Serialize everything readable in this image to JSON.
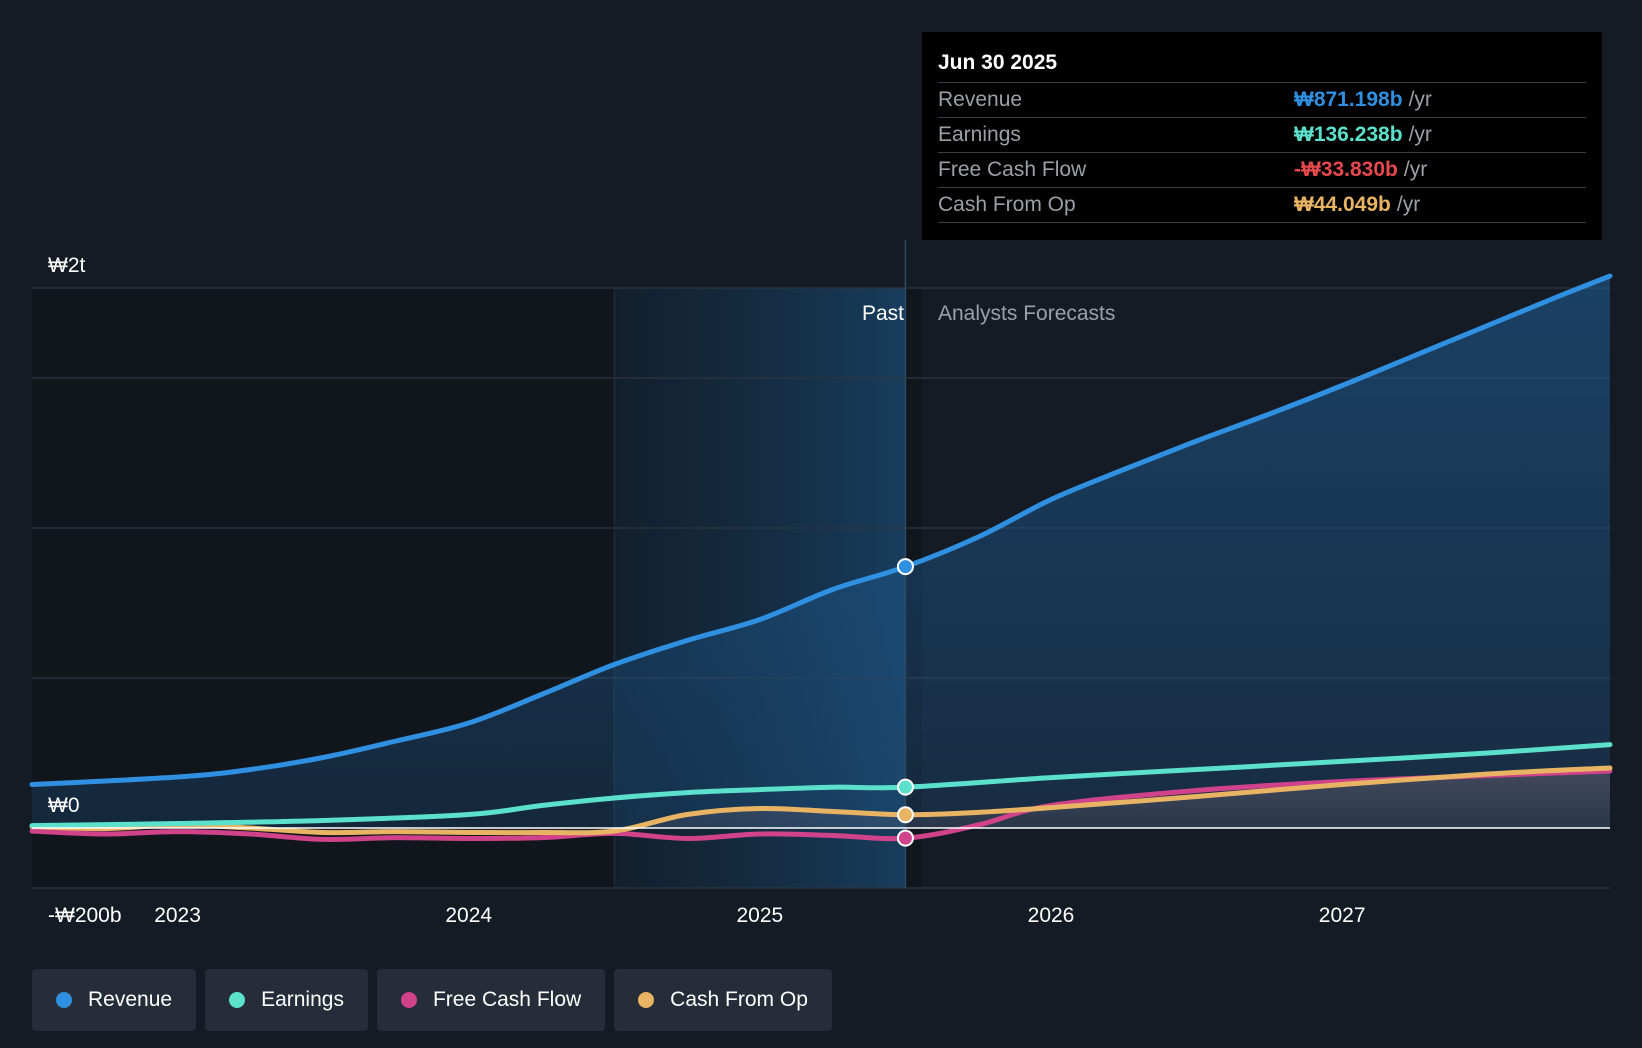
{
  "colors": {
    "revenue": "#2f8fe0",
    "earnings": "#5be0cb",
    "fcf": "#d0428a",
    "cfo": "#e8b463",
    "negative": "#e5484d"
  },
  "tooltip": {
    "date": "Jun 30 2025",
    "rows": [
      {
        "label": "Revenue",
        "value": "₩871.198b",
        "unit": "/yr"
      },
      {
        "label": "Earnings",
        "value": "₩136.238b",
        "unit": "/yr"
      },
      {
        "label": "Free Cash Flow",
        "value": "-₩33.830b",
        "unit": "/yr"
      },
      {
        "label": "Cash From Op",
        "value": "₩44.049b",
        "unit": "/yr"
      }
    ]
  },
  "legend": [
    {
      "label": "Revenue",
      "color": "#2f8fe0"
    },
    {
      "label": "Earnings",
      "color": "#5be0cb"
    },
    {
      "label": "Free Cash Flow",
      "color": "#d0428a"
    },
    {
      "label": "Cash From Op",
      "color": "#e8b463"
    }
  ],
  "chart_data": {
    "type": "line",
    "title": "",
    "xlabel": "",
    "ylabel": "",
    "y_unit": "KRW billions",
    "xlim": [
      2022.5,
      2027.92
    ],
    "ylim": [
      -200,
      1800
    ],
    "y_tick_labels": [
      {
        "value": 1800,
        "label": "₩2t"
      },
      {
        "value": 0,
        "label": "₩0"
      },
      {
        "value": -200,
        "label": "-₩200b"
      }
    ],
    "y_gridlines": [
      1800,
      1500,
      1000,
      500,
      0,
      -200
    ],
    "x_ticks": [
      2023,
      2024,
      2025,
      2026,
      2027
    ],
    "x_tick_labels": [
      "2023",
      "2024",
      "2025",
      "2026",
      "2027"
    ],
    "past_label": "Past",
    "forecast_label": "Analysts Forecasts",
    "past_shade_start": 2024.5,
    "divider_x": 2025.5,
    "series": [
      {
        "name": "Revenue",
        "key": "revenue",
        "x": [
          2022.5,
          2023.0,
          2023.25,
          2023.5,
          2023.75,
          2024.0,
          2024.25,
          2024.5,
          2024.75,
          2025.0,
          2025.25,
          2025.5,
          2025.75,
          2026.0,
          2026.25,
          2026.5,
          2026.75,
          2027.0,
          2027.25,
          2027.5,
          2027.75,
          2027.92
        ],
        "values": [
          145,
          170,
          195,
          235,
          290,
          350,
          445,
          545,
          625,
          695,
          795,
          871,
          970,
          1095,
          1195,
          1290,
          1380,
          1475,
          1575,
          1675,
          1775,
          1840
        ]
      },
      {
        "name": "Earnings",
        "key": "earnings",
        "x": [
          2022.5,
          2023.0,
          2023.5,
          2024.0,
          2024.25,
          2024.5,
          2024.75,
          2025.0,
          2025.25,
          2025.5,
          2026.0,
          2026.5,
          2027.0,
          2027.5,
          2027.92
        ],
        "values": [
          8,
          15,
          25,
          45,
          75,
          100,
          118,
          128,
          136,
          136,
          168,
          195,
          222,
          250,
          278
        ]
      },
      {
        "name": "Free Cash Flow",
        "key": "fcf",
        "x": [
          2022.5,
          2022.75,
          2023.0,
          2023.25,
          2023.5,
          2023.75,
          2024.0,
          2024.25,
          2024.5,
          2024.75,
          2025.0,
          2025.25,
          2025.5,
          2025.75,
          2026.0,
          2026.5,
          2027.0,
          2027.5,
          2027.92
        ],
        "values": [
          -10,
          -20,
          -12,
          -20,
          -38,
          -32,
          -35,
          -32,
          -18,
          -35,
          -20,
          -25,
          -34,
          10,
          75,
          125,
          155,
          175,
          190
        ]
      },
      {
        "name": "Cash From Op",
        "key": "cfo",
        "x": [
          2022.5,
          2022.75,
          2023.0,
          2023.25,
          2023.5,
          2023.75,
          2024.0,
          2024.25,
          2024.5,
          2024.75,
          2025.0,
          2025.25,
          2025.5,
          2025.75,
          2026.0,
          2026.5,
          2027.0,
          2027.5,
          2027.92
        ],
        "values": [
          5,
          -2,
          10,
          0,
          -15,
          -12,
          -15,
          -15,
          -10,
          45,
          65,
          55,
          44,
          52,
          68,
          105,
          145,
          180,
          200
        ]
      }
    ],
    "markers": [
      {
        "series": "revenue",
        "x": 2025.5,
        "y": 871.198
      },
      {
        "series": "earnings",
        "x": 2025.5,
        "y": 136.238
      },
      {
        "series": "cfo",
        "x": 2025.5,
        "y": 44.049
      },
      {
        "series": "fcf",
        "x": 2025.5,
        "y": -33.83
      }
    ]
  }
}
